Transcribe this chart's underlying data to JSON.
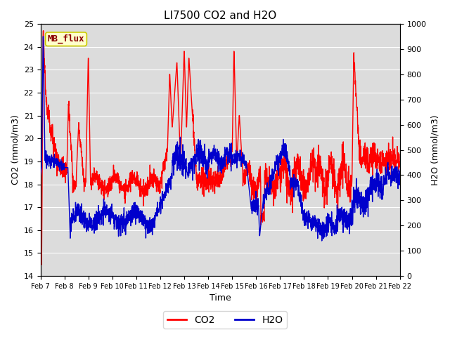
{
  "title": "LI7500 CO2 and H2O",
  "xlabel": "Time",
  "ylabel_left": "CO2 (mmol/m3)",
  "ylabel_right": "H2O (mmol/m3)",
  "ylim_left": [
    14.0,
    25.0
  ],
  "ylim_right": [
    0,
    1000
  ],
  "yticks_left": [
    14.0,
    15.0,
    16.0,
    17.0,
    18.0,
    19.0,
    20.0,
    21.0,
    22.0,
    23.0,
    24.0,
    25.0
  ],
  "yticks_right": [
    0,
    100,
    200,
    300,
    400,
    500,
    600,
    700,
    800,
    900,
    1000
  ],
  "xtick_labels": [
    "Feb 7",
    "Feb 8",
    "Feb 9",
    "Feb 10",
    "Feb 11",
    "Feb 12",
    "Feb 13",
    "Feb 14",
    "Feb 15",
    "Feb 16",
    "Feb 17",
    "Feb 18",
    "Feb 19",
    "Feb 20",
    "Feb 21",
    "Feb 22"
  ],
  "co2_color": "#FF0000",
  "h2o_color": "#0000CC",
  "line_width": 1.0,
  "plot_bg_color": "#DCDCDC",
  "annotation_text": "MB_flux",
  "annotation_bg": "#FFFFCC",
  "annotation_border": "#CCCC00",
  "legend_co2": "CO2",
  "legend_h2o": "H2O",
  "grid_color": "#FFFFFF",
  "figsize": [
    6.4,
    4.8
  ],
  "dpi": 100
}
